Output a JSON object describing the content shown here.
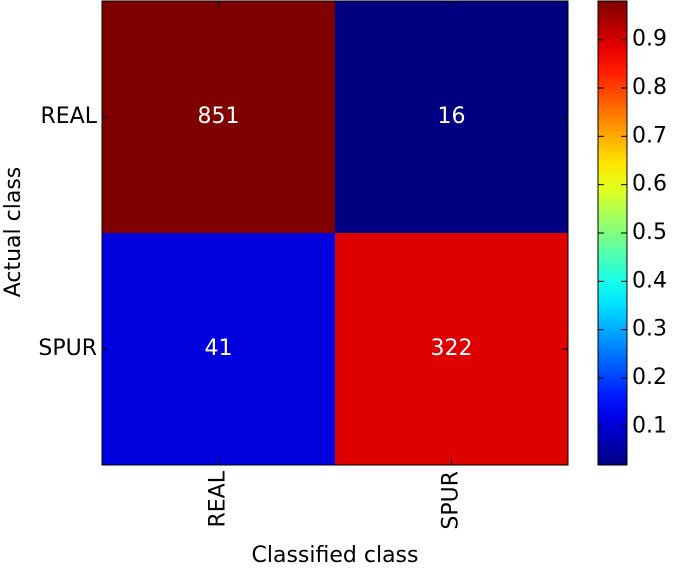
{
  "chart_data": {
    "type": "heatmap",
    "x_label": "Classified class",
    "y_label": "Actual class",
    "x_categories": [
      "REAL",
      "SPUR"
    ],
    "y_categories": [
      "REAL",
      "SPUR"
    ],
    "values": [
      [
        0.98,
        0.02
      ],
      [
        0.11,
        0.89
      ]
    ],
    "counts": [
      [
        851,
        16
      ],
      [
        41,
        322
      ]
    ],
    "colormap": "jet",
    "clim": [
      0.02,
      0.98
    ],
    "cticks": [
      0.1,
      0.2,
      0.3,
      0.4,
      0.5,
      0.6,
      0.7,
      0.8,
      0.9
    ]
  }
}
